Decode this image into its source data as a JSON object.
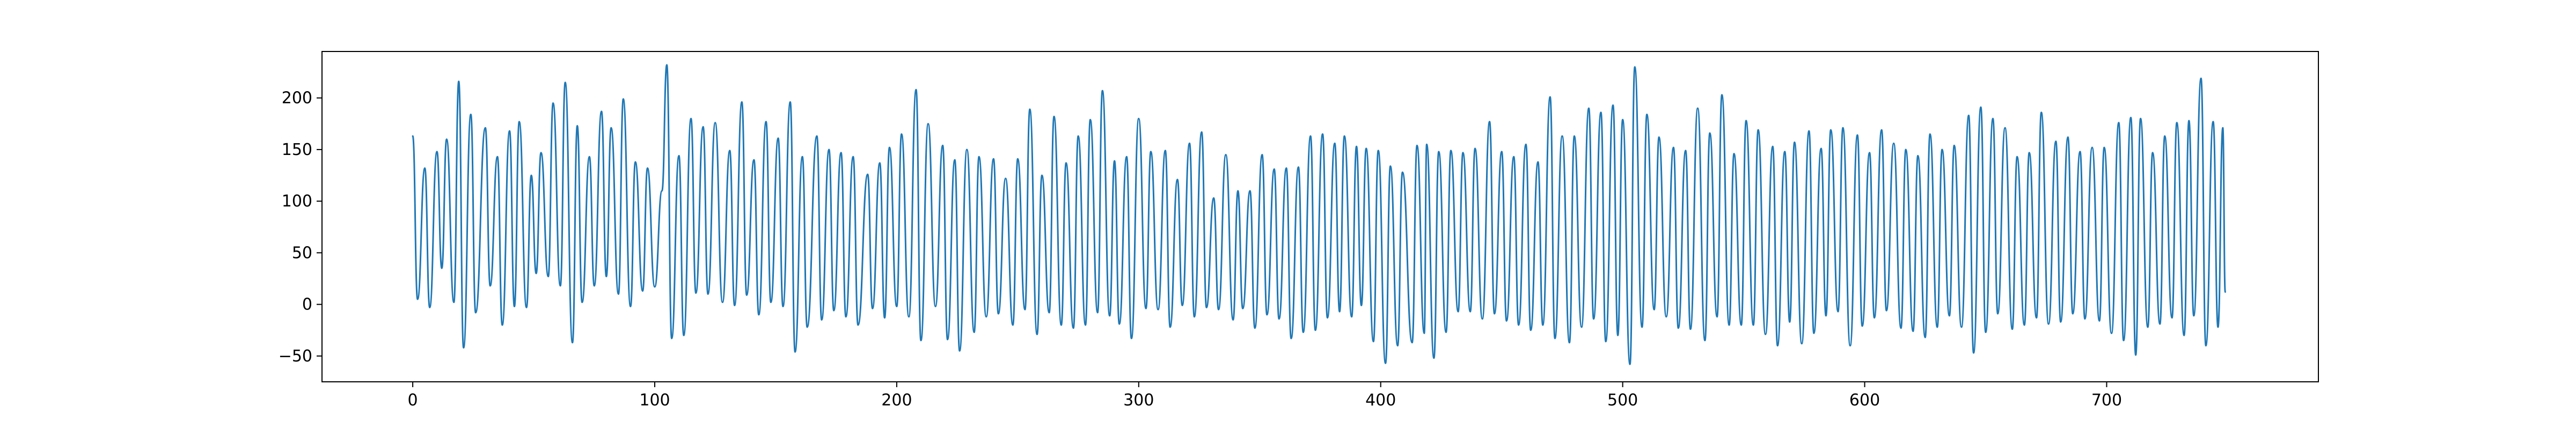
{
  "chart_data": {
    "type": "line",
    "title": "",
    "xlabel": "",
    "ylabel": "",
    "xlim": [
      -37.5,
      787.5
    ],
    "ylim": [
      -75,
      245
    ],
    "x_ticks": [
      0,
      100,
      200,
      300,
      400,
      500,
      600,
      700
    ],
    "y_ticks": [
      -50,
      0,
      50,
      100,
      150,
      200
    ],
    "grid": false,
    "legend": "none",
    "line_color": "#1f77b4",
    "series": [
      {
        "x_start": 0,
        "x_step": 1,
        "n_points": 750,
        "description_of_shape": "dense oscillating signal with repeated sharp peaks",
        "peaks": [
          [
            0,
            163
          ],
          [
            5,
            132
          ],
          [
            10,
            148
          ],
          [
            14,
            160
          ],
          [
            19,
            216
          ],
          [
            24,
            184
          ],
          [
            30,
            171
          ],
          [
            35,
            143
          ],
          [
            40,
            168
          ],
          [
            44,
            177
          ],
          [
            49,
            125
          ],
          [
            53,
            147
          ],
          [
            58,
            195
          ],
          [
            63,
            215
          ],
          [
            68,
            173
          ],
          [
            73,
            143
          ],
          [
            78,
            187
          ],
          [
            82,
            171
          ],
          [
            87,
            199
          ],
          [
            92,
            138
          ],
          [
            97,
            132
          ],
          [
            103,
            110
          ],
          [
            105,
            232
          ],
          [
            110,
            144
          ],
          [
            115,
            180
          ],
          [
            120,
            172
          ],
          [
            125,
            176
          ],
          [
            131,
            149
          ],
          [
            136,
            196
          ],
          [
            141,
            140
          ],
          [
            146,
            177
          ],
          [
            151,
            161
          ],
          [
            156,
            196
          ],
          [
            161,
            143
          ],
          [
            167,
            163
          ],
          [
            172,
            150
          ],
          [
            177,
            147
          ],
          [
            182,
            143
          ],
          [
            188,
            126
          ],
          [
            193,
            137
          ],
          [
            197,
            152
          ],
          [
            202,
            165
          ],
          [
            208,
            208
          ],
          [
            213,
            175
          ],
          [
            219,
            154
          ],
          [
            224,
            140
          ],
          [
            229,
            150
          ],
          [
            234,
            143
          ],
          [
            240,
            141
          ],
          [
            245,
            122
          ],
          [
            250,
            141
          ],
          [
            255,
            189
          ],
          [
            260,
            125
          ],
          [
            265,
            182
          ],
          [
            270,
            137
          ],
          [
            275,
            163
          ],
          [
            280,
            179
          ],
          [
            285,
            207
          ],
          [
            290,
            139
          ],
          [
            295,
            143
          ],
          [
            300,
            180
          ],
          [
            305,
            148
          ],
          [
            311,
            149
          ],
          [
            316,
            121
          ],
          [
            321,
            156
          ],
          [
            326,
            167
          ],
          [
            331,
            103
          ],
          [
            336,
            145
          ],
          [
            341,
            110
          ],
          [
            346,
            110
          ],
          [
            351,
            145
          ],
          [
            356,
            131
          ],
          [
            361,
            132
          ],
          [
            366,
            133
          ],
          [
            371,
            163
          ],
          [
            376,
            165
          ],
          [
            381,
            156
          ],
          [
            385,
            163
          ],
          [
            390,
            153
          ],
          [
            394,
            151
          ],
          [
            399,
            149
          ],
          [
            404,
            134
          ],
          [
            409,
            128
          ],
          [
            415,
            154
          ],
          [
            419,
            155
          ],
          [
            424,
            148
          ],
          [
            429,
            149
          ],
          [
            434,
            147
          ],
          [
            439,
            151
          ],
          [
            445,
            177
          ],
          [
            450,
            148
          ],
          [
            455,
            143
          ],
          [
            460,
            155
          ],
          [
            465,
            138
          ],
          [
            470,
            201
          ],
          [
            475,
            163
          ],
          [
            480,
            163
          ],
          [
            486,
            190
          ],
          [
            491,
            186
          ],
          [
            496,
            193
          ],
          [
            500,
            179
          ],
          [
            505,
            230
          ],
          [
            510,
            184
          ],
          [
            515,
            162
          ],
          [
            521,
            152
          ],
          [
            526,
            149
          ],
          [
            531,
            190
          ],
          [
            536,
            166
          ],
          [
            541,
            203
          ],
          [
            546,
            146
          ],
          [
            551,
            178
          ],
          [
            556,
            169
          ],
          [
            562,
            153
          ],
          [
            567,
            148
          ],
          [
            571,
            157
          ],
          [
            577,
            168
          ],
          [
            582,
            151
          ],
          [
            586,
            169
          ],
          [
            591,
            171
          ],
          [
            597,
            164
          ],
          [
            602,
            147
          ],
          [
            607,
            169
          ],
          [
            612,
            156
          ],
          [
            617,
            150
          ],
          [
            622,
            144
          ],
          [
            627,
            165
          ],
          [
            632,
            150
          ],
          [
            637,
            154
          ],
          [
            643,
            183
          ],
          [
            648,
            191
          ],
          [
            653,
            180
          ],
          [
            658,
            171
          ],
          [
            663,
            143
          ],
          [
            668,
            147
          ],
          [
            673,
            186
          ],
          [
            679,
            158
          ],
          [
            684,
            162
          ],
          [
            689,
            148
          ],
          [
            694,
            152
          ],
          [
            699,
            152
          ],
          [
            705,
            176
          ],
          [
            710,
            181
          ],
          [
            714,
            180
          ],
          [
            719,
            147
          ],
          [
            724,
            163
          ],
          [
            729,
            176
          ],
          [
            734,
            178
          ],
          [
            739,
            219
          ],
          [
            744,
            177
          ],
          [
            748,
            171
          ]
        ],
        "troughs": [
          [
            2,
            5
          ],
          [
            7,
            -3
          ],
          [
            12,
            35
          ],
          [
            17,
            2
          ],
          [
            21,
            -42
          ],
          [
            26,
            -8
          ],
          [
            32,
            18
          ],
          [
            37,
            -20
          ],
          [
            42,
            -2
          ],
          [
            47,
            -3
          ],
          [
            51,
            30
          ],
          [
            56,
            27
          ],
          [
            61,
            18
          ],
          [
            66,
            -37
          ],
          [
            70,
            2
          ],
          [
            75,
            18
          ],
          [
            80,
            27
          ],
          [
            85,
            10
          ],
          [
            90,
            -2
          ],
          [
            95,
            13
          ],
          [
            100,
            17
          ],
          [
            107,
            -33
          ],
          [
            112,
            -30
          ],
          [
            117,
            11
          ],
          [
            122,
            10
          ],
          [
            128,
            2
          ],
          [
            133,
            -1
          ],
          [
            138,
            9
          ],
          [
            143,
            -10
          ],
          [
            148,
            2
          ],
          [
            153,
            -2
          ],
          [
            158,
            -46
          ],
          [
            163,
            -22
          ],
          [
            169,
            -15
          ],
          [
            174,
            -6
          ],
          [
            179,
            -12
          ],
          [
            184,
            -20
          ],
          [
            190,
            -4
          ],
          [
            195,
            -13
          ],
          [
            200,
            -2
          ],
          [
            205,
            -12
          ],
          [
            210,
            -35
          ],
          [
            216,
            -2
          ],
          [
            221,
            -34
          ],
          [
            226,
            -45
          ],
          [
            232,
            -27
          ],
          [
            237,
            -12
          ],
          [
            242,
            -9
          ],
          [
            248,
            -20
          ],
          [
            253,
            -5
          ],
          [
            258,
            -29
          ],
          [
            263,
            -8
          ],
          [
            268,
            -20
          ],
          [
            273,
            -23
          ],
          [
            278,
            -20
          ],
          [
            283,
            -8
          ],
          [
            288,
            -11
          ],
          [
            292,
            -19
          ],
          [
            297,
            -33
          ],
          [
            303,
            -4
          ],
          [
            308,
            -5
          ],
          [
            313,
            -22
          ],
          [
            318,
            -1
          ],
          [
            323,
            -12
          ],
          [
            328,
            -3
          ],
          [
            333,
            -5
          ],
          [
            339,
            -15
          ],
          [
            343,
            -4
          ],
          [
            348,
            -23
          ],
          [
            353,
            -10
          ],
          [
            358,
            -14
          ],
          [
            363,
            -33
          ],
          [
            368,
            -27
          ],
          [
            373,
            -25
          ],
          [
            378,
            -13
          ],
          [
            383,
            -7
          ],
          [
            388,
            -12
          ],
          [
            392,
            -1
          ],
          [
            397,
            -36
          ],
          [
            402,
            -57
          ],
          [
            407,
            -40
          ],
          [
            413,
            -37
          ],
          [
            418,
            -28
          ],
          [
            422,
            -52
          ],
          [
            427,
            -27
          ],
          [
            432,
            -7
          ],
          [
            437,
            -7
          ],
          [
            442,
            -14
          ],
          [
            447,
            -9
          ],
          [
            452,
            -16
          ],
          [
            457,
            -20
          ],
          [
            462,
            -25
          ],
          [
            467,
            -20
          ],
          [
            472,
            -33
          ],
          [
            478,
            -37
          ],
          [
            483,
            -22
          ],
          [
            488,
            -14
          ],
          [
            493,
            -36
          ],
          [
            498,
            -30
          ],
          [
            503,
            -58
          ],
          [
            508,
            -22
          ],
          [
            513,
            -5
          ],
          [
            518,
            -12
          ],
          [
            523,
            -23
          ],
          [
            528,
            -24
          ],
          [
            534,
            -35
          ],
          [
            539,
            -12
          ],
          [
            544,
            -20
          ],
          [
            549,
            -20
          ],
          [
            554,
            -20
          ],
          [
            559,
            -29
          ],
          [
            564,
            -40
          ],
          [
            569,
            -17
          ],
          [
            574,
            -38
          ],
          [
            579,
            -28
          ],
          [
            584,
            -11
          ],
          [
            589,
            -7
          ],
          [
            594,
            -40
          ],
          [
            599,
            -21
          ],
          [
            604,
            -13
          ],
          [
            609,
            -6
          ],
          [
            615,
            -23
          ],
          [
            620,
            -26
          ],
          [
            625,
            -32
          ],
          [
            630,
            -22
          ],
          [
            635,
            -11
          ],
          [
            640,
            -22
          ],
          [
            645,
            -47
          ],
          [
            650,
            -27
          ],
          [
            655,
            -9
          ],
          [
            661,
            -24
          ],
          [
            666,
            -20
          ],
          [
            671,
            -13
          ],
          [
            676,
            -19
          ],
          [
            681,
            -17
          ],
          [
            686,
            -9
          ],
          [
            691,
            -14
          ],
          [
            697,
            -16
          ],
          [
            702,
            -28
          ],
          [
            707,
            -35
          ],
          [
            712,
            -49
          ],
          [
            717,
            -22
          ],
          [
            722,
            -19
          ],
          [
            727,
            -13
          ],
          [
            732,
            -30
          ],
          [
            736,
            -11
          ],
          [
            741,
            -40
          ],
          [
            746,
            -22
          ],
          [
            749,
            12
          ]
        ]
      }
    ]
  }
}
